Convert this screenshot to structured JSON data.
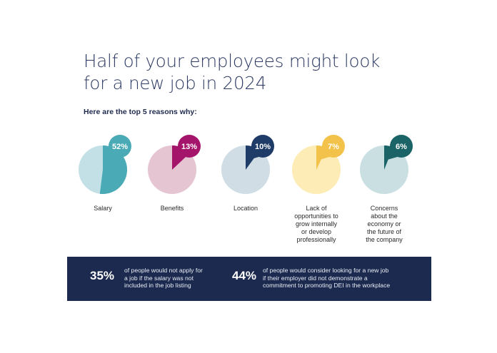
{
  "header": {
    "title_line1": "Half of your employees might look",
    "title_line2": "for a new job in 2024",
    "subtitle": "Here are the top 5 reasons why:"
  },
  "chart_data": {
    "type": "pie",
    "unit": "%",
    "categories": [
      "Salary",
      "Benefits",
      "Location",
      "Lack of opportunities to grow internally or develop professionally",
      "Concerns about the economy or the future of the company"
    ],
    "values": [
      52,
      13,
      10,
      7,
      6
    ],
    "value_labels": [
      "52%",
      "13%",
      "10%",
      "7%",
      "6%"
    ],
    "colors": {
      "main": [
        "#4aaab5",
        "#a5146b",
        "#1f3b67",
        "#f2c24a",
        "#1a6468"
      ],
      "light": [
        "#c2e0e5",
        "#e6c5d3",
        "#d0dde5",
        "#fdecb5",
        "#c9dfe1"
      ]
    }
  },
  "labels": [
    [
      "Salary"
    ],
    [
      "Benefits"
    ],
    [
      "Location"
    ],
    [
      "Lack of",
      "opportunities to",
      "grow internally",
      "or develop",
      "professionally"
    ],
    [
      "Concerns",
      "about the",
      "economy or",
      "the future of",
      "the company"
    ]
  ],
  "banner": {
    "stat1": {
      "pct": "35%",
      "line1": "of people would not apply for",
      "line2": "a job if the salary was not",
      "line3": "included in the job listing"
    },
    "stat2": {
      "pct": "44%",
      "line1": "of people would consider looking for a new job",
      "line2": "if their employer did not demonstrate a",
      "line3": "commitment to promoting DEI in the workplace"
    }
  }
}
